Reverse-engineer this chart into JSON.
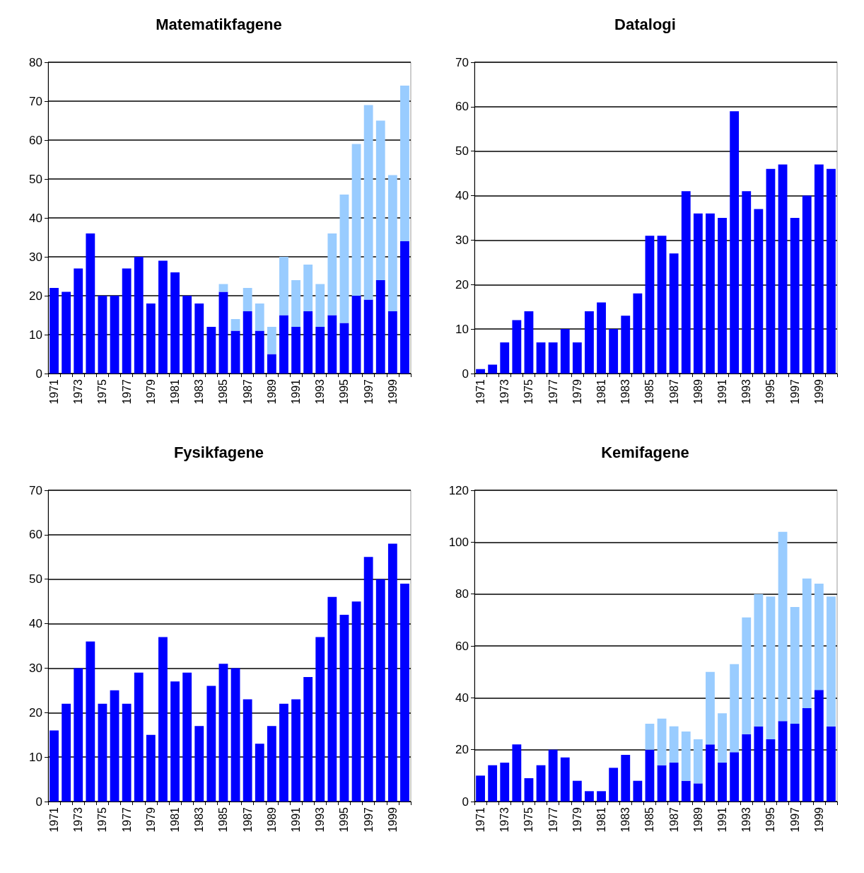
{
  "chart_data": [
    {
      "type": "bar",
      "title": "Matematikfagene",
      "stacked": true,
      "grid": "y",
      "categories": [
        "1971",
        null,
        "1973",
        null,
        "1975",
        null,
        "1977",
        null,
        "1979",
        null,
        "1981",
        null,
        "1983",
        null,
        "1985",
        null,
        "1987",
        null,
        "1989",
        null,
        "1991",
        null,
        "1993",
        null,
        "1995",
        null,
        "1997",
        null,
        "1999",
        null
      ],
      "ylim": [
        0,
        80
      ],
      "yticks": [
        0,
        10,
        20,
        30,
        40,
        50,
        60,
        70,
        80
      ],
      "series": [
        {
          "color": "#0000ff",
          "values": [
            22,
            21,
            27,
            36,
            20,
            20,
            27,
            30,
            18,
            29,
            26,
            20,
            18,
            12,
            21,
            11,
            16,
            11,
            5,
            15,
            12,
            16,
            12,
            15,
            13,
            20,
            19,
            24,
            16,
            34
          ]
        },
        {
          "color": "#99ccff",
          "values": [
            null,
            null,
            null,
            null,
            null,
            null,
            null,
            null,
            null,
            null,
            null,
            null,
            null,
            null,
            2,
            3,
            6,
            7,
            7,
            15,
            12,
            12,
            11,
            21,
            33,
            39,
            50,
            41,
            35,
            40
          ]
        }
      ]
    },
    {
      "type": "bar",
      "title": "Datalogi",
      "grid": "y",
      "categories": [
        "1971",
        null,
        "1973",
        null,
        "1975",
        null,
        "1977",
        null,
        "1979",
        null,
        "1981",
        null,
        "1983",
        null,
        "1985",
        null,
        "1987",
        null,
        "1989",
        null,
        "1991",
        null,
        "1993",
        null,
        "1995",
        null,
        "1997",
        null,
        "1999",
        null
      ],
      "ylim": [
        0,
        70
      ],
      "yticks": [
        0,
        10,
        20,
        30,
        40,
        50,
        60,
        70
      ],
      "series": [
        {
          "color": "#0000ff",
          "values": [
            1,
            2,
            7,
            12,
            14,
            7,
            7,
            10,
            7,
            14,
            16,
            10,
            13,
            18,
            31,
            31,
            27,
            41,
            36,
            36,
            35,
            59,
            41,
            37,
            46,
            47,
            35,
            40,
            47,
            46
          ]
        }
      ]
    },
    {
      "type": "bar",
      "title": "Fysikfagene",
      "grid": "y",
      "categories": [
        "1971",
        null,
        "1973",
        null,
        "1975",
        null,
        "1977",
        null,
        "1979",
        null,
        "1981",
        null,
        "1983",
        null,
        "1985",
        null,
        "1987",
        null,
        "1989",
        null,
        "1991",
        null,
        "1993",
        null,
        "1995",
        null,
        "1997",
        null,
        "1999",
        null
      ],
      "ylim": [
        0,
        70
      ],
      "yticks": [
        0,
        10,
        20,
        30,
        40,
        50,
        60,
        70
      ],
      "series": [
        {
          "color": "#0000ff",
          "values": [
            16,
            22,
            30,
            36,
            22,
            25,
            22,
            29,
            15,
            37,
            27,
            29,
            17,
            26,
            31,
            30,
            23,
            13,
            17,
            22,
            23,
            28,
            37,
            46,
            42,
            45,
            55,
            50,
            58,
            49
          ]
        }
      ]
    },
    {
      "type": "bar",
      "title": "Kemifagene",
      "stacked": true,
      "grid": "y",
      "categories": [
        "1971",
        null,
        "1973",
        null,
        "1975",
        null,
        "1977",
        null,
        "1979",
        null,
        "1981",
        null,
        "1983",
        null,
        "1985",
        null,
        "1987",
        null,
        "1989",
        null,
        "1991",
        null,
        "1993",
        null,
        "1995",
        null,
        "1997",
        null,
        "1999",
        null
      ],
      "ylim": [
        0,
        120
      ],
      "yticks": [
        0,
        20,
        40,
        60,
        80,
        100,
        120
      ],
      "series": [
        {
          "color": "#0000ff",
          "values": [
            10,
            14,
            15,
            22,
            9,
            14,
            20,
            17,
            8,
            4,
            4,
            13,
            18,
            8,
            20,
            14,
            15,
            8,
            7,
            22,
            15,
            19,
            26,
            29,
            24,
            31,
            30,
            36,
            43,
            29
          ]
        },
        {
          "color": "#99ccff",
          "values": [
            null,
            null,
            null,
            null,
            null,
            null,
            null,
            null,
            null,
            null,
            null,
            null,
            null,
            null,
            10,
            18,
            14,
            19,
            17,
            28,
            19,
            34,
            45,
            51,
            55,
            73,
            45,
            50,
            41,
            50
          ]
        }
      ]
    }
  ]
}
